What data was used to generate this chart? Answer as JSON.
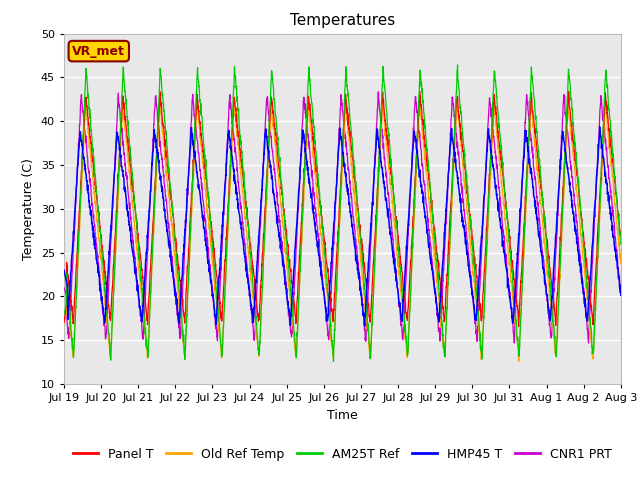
{
  "title": "Temperatures",
  "xlabel": "Time",
  "ylabel": "Temperature (C)",
  "ylim": [
    10,
    50
  ],
  "annotation_text": "VR_met",
  "annotation_color": "#8B0000",
  "annotation_bg": "#FFD700",
  "series_colors": {
    "Panel T": "#FF0000",
    "Old Ref Temp": "#FFA500",
    "AM25T Ref": "#00CC00",
    "HMP45 T": "#0000FF",
    "CNR1 PRT": "#CC00CC"
  },
  "x_tick_labels": [
    "Jul 19",
    "Jul 20",
    "Jul 21",
    "Jul 22",
    "Jul 23",
    "Jul 24",
    "Jul 25",
    "Jul 26",
    "Jul 27",
    "Jul 28",
    "Jul 29",
    "Jul 30",
    "Jul 31",
    "Aug 1",
    "Aug 2",
    "Aug 3"
  ],
  "background_color": "#E8E8E8",
  "grid_color": "#FFFFFF",
  "title_fontsize": 11,
  "axis_fontsize": 9,
  "tick_fontsize": 8,
  "legend_fontsize": 9
}
